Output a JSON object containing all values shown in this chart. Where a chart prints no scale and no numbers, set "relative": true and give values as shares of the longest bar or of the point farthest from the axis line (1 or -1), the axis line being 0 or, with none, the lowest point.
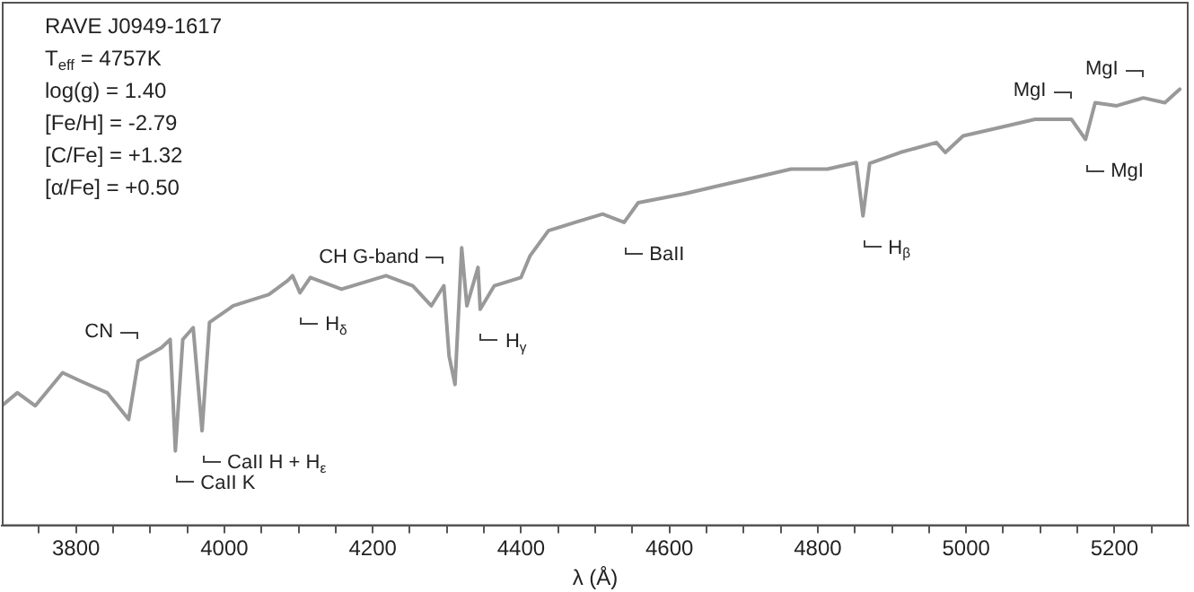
{
  "chart_data": {
    "type": "line",
    "relative": true,
    "xlabel": "λ (Å)",
    "xlim": [
      3700,
      5300
    ],
    "xticks": [
      {
        "value": 3750,
        "label": null
      },
      3800,
      {
        "value": 3850,
        "label": null
      },
      {
        "value": 3900,
        "label": null
      },
      {
        "value": 3950,
        "label": null
      },
      4000,
      {
        "value": 4050,
        "label": null
      },
      {
        "value": 4100,
        "label": null
      },
      {
        "value": 4150,
        "label": null
      },
      4200,
      {
        "value": 4250,
        "label": null
      },
      {
        "value": 4300,
        "label": null
      },
      {
        "value": 4350,
        "label": null
      },
      4400,
      {
        "value": 4450,
        "label": null
      },
      {
        "value": 4500,
        "label": null
      },
      {
        "value": 4550,
        "label": null
      },
      4600,
      {
        "value": 4650,
        "label": null
      },
      {
        "value": 4700,
        "label": null
      },
      {
        "value": 4750,
        "label": null
      },
      4800,
      {
        "value": 4850,
        "label": null
      },
      {
        "value": 4900,
        "label": null
      },
      {
        "value": 4950,
        "label": null
      },
      5000,
      {
        "value": 5050,
        "label": null
      },
      {
        "value": 5100,
        "label": null
      },
      {
        "value": 5150,
        "label": null
      },
      5200,
      {
        "value": 5250,
        "label": null
      }
    ],
    "grid": false,
    "legend": false,
    "marker": "none",
    "line_style": "solid",
    "series": [
      {
        "color": "#999999",
        "x": [
          3700,
          3721,
          3745,
          3782,
          3806,
          3842,
          3871,
          3884,
          3915,
          3927,
          3934,
          3944,
          3958,
          3970,
          3980,
          4012,
          4060,
          4085,
          4092,
          4102,
          4116,
          4158,
          4218,
          4254,
          4279,
          4296,
          4303,
          4311,
          4320,
          4327,
          4342,
          4345,
          4364,
          4400,
          4412,
          4437,
          4473,
          4510,
          4539,
          4558,
          4619,
          4667,
          4716,
          4764,
          4813,
          4852,
          4861,
          4870,
          4911,
          4960,
          4972,
          4996,
          5045,
          5093,
          5142,
          5161,
          5174,
          5203,
          5239,
          5268,
          5288
        ],
        "values": [
          0.275,
          0.305,
          0.275,
          0.351,
          0.332,
          0.305,
          0.244,
          0.378,
          0.408,
          0.427,
          0.172,
          0.427,
          0.454,
          0.218,
          0.466,
          0.504,
          0.53,
          0.561,
          0.573,
          0.534,
          0.569,
          0.542,
          0.573,
          0.55,
          0.504,
          0.55,
          0.389,
          0.324,
          0.637,
          0.504,
          0.592,
          0.496,
          0.55,
          0.569,
          0.618,
          0.676,
          0.695,
          0.714,
          0.695,
          0.74,
          0.76,
          0.779,
          0.798,
          0.817,
          0.817,
          0.832,
          0.71,
          0.83,
          0.855,
          0.878,
          0.855,
          0.893,
          0.912,
          0.931,
          0.931,
          0.885,
          0.969,
          0.962,
          0.98,
          0.969,
          1.0
        ]
      }
    ],
    "annotations": [
      "RAVE J0949-1617",
      "T$_{eff}$ = 4757K",
      "log(g) = 1.40",
      "[Fe/H] = -2.79",
      "[C/Fe] = +1.32",
      "[α/Fe] = +0.50",
      {
        "text": "CN",
        "x": 3884,
        "y": 0.378
      },
      {
        "text": "CaII K",
        "x": 3934,
        "y": 0.172
      },
      {
        "text": "CaII H + H$_{ε}$",
        "x": 3970,
        "y": 0.218
      },
      {
        "text": "H$_{δ}$",
        "x": 4102,
        "y": 0.534
      },
      {
        "text": "CH G-band",
        "x": 4296,
        "y": 0.55
      },
      {
        "text": "H$_{γ}$",
        "x": 4345,
        "y": 0.496
      },
      {
        "text": "BaII",
        "x": 4539,
        "y": 0.695
      },
      {
        "text": "H$_{β}$",
        "x": 4861,
        "y": 0.71
      },
      {
        "text": "MgI",
        "x": 5142,
        "y": 0.931
      },
      {
        "text": "MgI",
        "x": 5161,
        "y": 0.885
      },
      {
        "text": "MgI",
        "x": 5239,
        "y": 0.98
      }
    ]
  }
}
